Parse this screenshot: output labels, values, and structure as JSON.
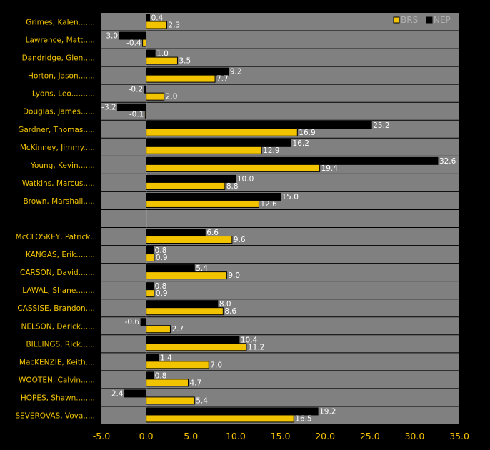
{
  "chart_data": {
    "type": "bar",
    "orientation": "horizontal",
    "categories": [
      "Grimes, Kalen.......",
      "Lawrence, Matt.....",
      "Dandridge, Glen.....",
      "Horton, Jason.......",
      "Lyons, Leo..........",
      "Douglas, James......",
      "Gardner, Thomas.....",
      "McKinney, Jimmy.....",
      "Young, Kevin.......",
      "Watkins, Marcus.....",
      "Brown, Marshall.....",
      "",
      "McCLOSKEY, Patrick..",
      "KANGAS, Erik........",
      "CARSON, David.......",
      "LAWAL, Shane........",
      "CASSISE, Brandon....",
      "NELSON, Derick......",
      "BILLINGS, Rick......",
      "MacKENZIE, Keith....",
      "WOOTEN, Calvin......",
      "HOPES, Shawn........",
      "SEVEROVAS, Vova....."
    ],
    "series": [
      {
        "name": "BRS",
        "color": "#f2c400",
        "values": [
          2.3,
          -0.4,
          3.5,
          7.7,
          2.0,
          -0.1,
          16.9,
          12.9,
          19.4,
          8.8,
          12.6,
          null,
          9.6,
          0.9,
          9.0,
          0.9,
          8.6,
          2.7,
          11.2,
          7.0,
          4.7,
          5.4,
          16.5
        ]
      },
      {
        "name": "NEP",
        "color": "#000000",
        "values": [
          0.4,
          -3.0,
          1.0,
          9.2,
          -0.2,
          -3.2,
          25.2,
          16.2,
          32.6,
          10.0,
          15.0,
          null,
          6.6,
          0.8,
          5.4,
          0.8,
          8.0,
          -0.6,
          10.4,
          1.4,
          0.8,
          -2.4,
          19.2
        ]
      }
    ],
    "xlim": [
      -5.0,
      35.0
    ],
    "xticks": [
      "-5.0",
      "0.0",
      "5.0",
      "10.0",
      "15.0",
      "20.0",
      "25.0",
      "30.0",
      "35.0"
    ],
    "title": "",
    "xlabel": "",
    "ylabel": "",
    "grid": true,
    "legend": "top-right",
    "colors": {
      "background": "#000000",
      "plot_area": "#808080",
      "text": "#f2c400",
      "value_labels": "#ffffff"
    }
  }
}
